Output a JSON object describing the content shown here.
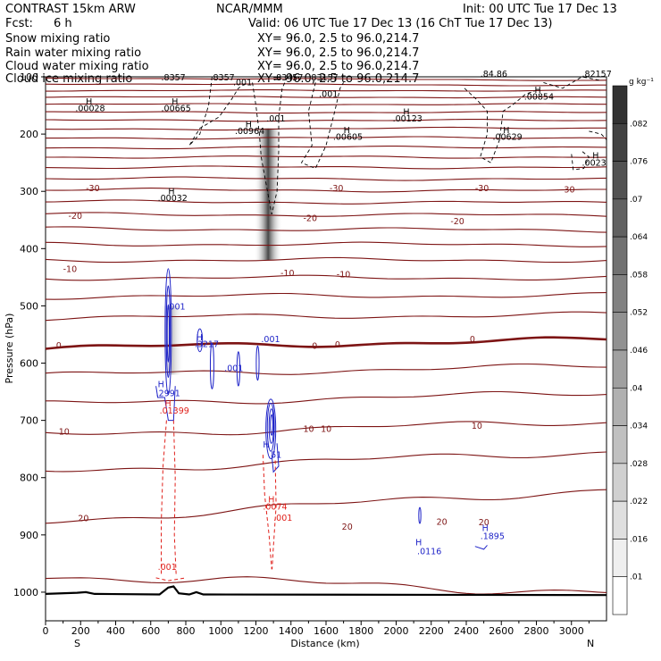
{
  "header": {
    "title": "CONTRAST 15km ARW",
    "center": "NCAR/MMM",
    "init": "Init: 00 UTC Tue 17 Dec 13",
    "fcst_label": "Fcst:",
    "fcst_value": "6 h",
    "valid": "Valid: 06 UTC Tue 17 Dec 13 (16 ChT Tue 17 Dec 13)"
  },
  "fields": [
    {
      "name": "Snow mixing ratio",
      "color": "#000000",
      "xy": "XY=  96.0,  2.5 to  96.0,214.7"
    },
    {
      "name": "Rain water mixing ratio",
      "color": "#e0201b",
      "xy": "XY=  96.0,  2.5 to  96.0,214.7"
    },
    {
      "name": "Cloud water mixing ratio",
      "color": "#1f24c8",
      "xy": "XY=  96.0,  2.5 to  96.0,214.7"
    },
    {
      "name": "Cloud ice mixing ratio",
      "color": "#000000",
      "xy": "XY=  96.0,  2.5 to  96.0,214.7"
    }
  ],
  "chart_data": {
    "type": "cross-section contour",
    "xlabel": "Distance (km)",
    "ylabel": "Pressure (hPa)",
    "xlim": [
      0,
      3200
    ],
    "ylim": [
      1050,
      100
    ],
    "x_ticks": [
      "0",
      "200",
      "400",
      "600",
      "800",
      "1000",
      "1200",
      "1400",
      "1600",
      "1800",
      "2000",
      "2200",
      "2400",
      "2600",
      "2800",
      "3000"
    ],
    "y_ticks": [
      "100",
      "200",
      "300",
      "400",
      "500",
      "600",
      "700",
      "800",
      "900",
      "1000"
    ],
    "x_ticks_values": [
      0,
      200,
      400,
      600,
      800,
      1000,
      1200,
      1400,
      1600,
      1800,
      2000,
      2200,
      2400,
      2600,
      2800,
      3000
    ],
    "y_ticks_values": [
      100,
      200,
      300,
      400,
      500,
      600,
      700,
      800,
      900,
      1000
    ],
    "direction_left": "S",
    "direction_right": "N",
    "colorbar": {
      "unit": "g kg⁻¹",
      "labels": [
        ".082",
        ".076",
        ".07",
        ".064",
        ".058",
        ".052",
        ".046",
        ".04",
        ".034",
        ".028",
        ".022",
        ".016",
        ".01"
      ],
      "values": [
        0.082,
        0.076,
        0.07,
        0.064,
        0.058,
        0.052,
        0.046,
        0.04,
        0.034,
        0.028,
        0.022,
        0.016,
        0.01
      ]
    },
    "temperature_labels": [
      {
        "text": "-30",
        "x": 230,
        "p": 300
      },
      {
        "text": "-30",
        "x": 1620,
        "p": 300
      },
      {
        "text": "-30",
        "x": 2450,
        "p": 300
      },
      {
        "text": "-30",
        "x": 2940,
        "p": 302
      },
      {
        "text": "-20",
        "x": 130,
        "p": 348
      },
      {
        "text": "-20",
        "x": 1470,
        "p": 352
      },
      {
        "text": "-20",
        "x": 2310,
        "p": 357
      },
      {
        "text": "-10",
        "x": 100,
        "p": 441
      },
      {
        "text": "-10",
        "x": 1340,
        "p": 448
      },
      {
        "text": "-10",
        "x": 1660,
        "p": 450
      },
      {
        "text": "0",
        "x": 60,
        "p": 574
      },
      {
        "text": "0",
        "x": 1520,
        "p": 575
      },
      {
        "text": "0",
        "x": 1650,
        "p": 573
      },
      {
        "text": "0",
        "x": 2420,
        "p": 563
      },
      {
        "text": "10",
        "x": 75,
        "p": 725
      },
      {
        "text": "10",
        "x": 1470,
        "p": 720
      },
      {
        "text": "10",
        "x": 1570,
        "p": 720
      },
      {
        "text": "10",
        "x": 2430,
        "p": 715
      },
      {
        "text": "20",
        "x": 185,
        "p": 876
      },
      {
        "text": "20",
        "x": 1690,
        "p": 891
      },
      {
        "text": "20",
        "x": 2230,
        "p": 882
      },
      {
        "text": "20",
        "x": 2470,
        "p": 883
      }
    ],
    "snow_maxima": [
      {
        "text": ".00028",
        "x": 170,
        "p": 160
      },
      {
        "text": ".00665",
        "x": 660,
        "p": 160
      },
      {
        "text": ".00964",
        "x": 1080,
        "p": 200
      },
      {
        "text": ".00605",
        "x": 1640,
        "p": 210
      },
      {
        "text": ".00123",
        "x": 1980,
        "p": 178
      },
      {
        "text": ".00629",
        "x": 2550,
        "p": 210
      },
      {
        "text": ".00854",
        "x": 2730,
        "p": 140
      },
      {
        "text": ".00032",
        "x": 640,
        "p": 317
      },
      {
        "text": ".0023",
        "x": 3060,
        "p": 255
      }
    ],
    "snow_contours": [
      {
        "text": ".001",
        "x": 1070,
        "p": 115
      },
      {
        "text": ".001",
        "x": 1260,
        "p": 178
      },
      {
        "text": ".001",
        "x": 1560,
        "p": 135
      }
    ],
    "cloud_ice_max": [
      ".8357",
      ".8357",
      ".83457",
      ".83157",
      ".84.86",
      ".82157"
    ],
    "cloud_water": [
      {
        "text": ".001",
        "x": 690,
        "p": 506
      },
      {
        "text": ".3217",
        "x": 850,
        "p": 572
      },
      {
        "text": ".001",
        "x": 1020,
        "p": 614
      },
      {
        "text": ".001",
        "x": 1230,
        "p": 563
      },
      {
        "text": ".2991",
        "x": 630,
        "p": 658
      },
      {
        "text": ".51",
        "x": 1270,
        "p": 765
      },
      {
        "text": ".0116",
        "x": 2120,
        "p": 934
      },
      {
        "text": ".1895",
        "x": 2480,
        "p": 907
      }
    ],
    "rain_water": [
      {
        "text": ".01399",
        "x": 650,
        "p": 688
      },
      {
        "text": ".0074",
        "x": 1240,
        "p": 856
      },
      {
        "text": ".001",
        "x": 1300,
        "p": 875
      },
      {
        "text": ".001",
        "x": 640,
        "p": 961
      }
    ],
    "isotherm_pressures_left": [
      102,
      112,
      124,
      135,
      148,
      162,
      176,
      192,
      207,
      224,
      240,
      258,
      277,
      297,
      318,
      340,
      365,
      392,
      420,
      451,
      484,
      521,
      574,
      621,
      672,
      726,
      789,
      876,
      971
    ],
    "isotherm_pressures_right": [
      106,
      115,
      124,
      136,
      148,
      162,
      176,
      189,
      206,
      222,
      240,
      258,
      279,
      299,
      320,
      342,
      368,
      393,
      420,
      451,
      481,
      515,
      559,
      605,
      652,
      702,
      754,
      820,
      1000
    ],
    "terrain": [
      [
        0,
        1003
      ],
      [
        180,
        1001
      ],
      [
        230,
        1000
      ],
      [
        280,
        1003
      ],
      [
        650,
        1004
      ],
      [
        700,
        992
      ],
      [
        730,
        990
      ],
      [
        760,
        1002
      ],
      [
        820,
        1004
      ],
      [
        860,
        1000
      ],
      [
        900,
        1004
      ],
      [
        3200,
        1005
      ]
    ]
  }
}
